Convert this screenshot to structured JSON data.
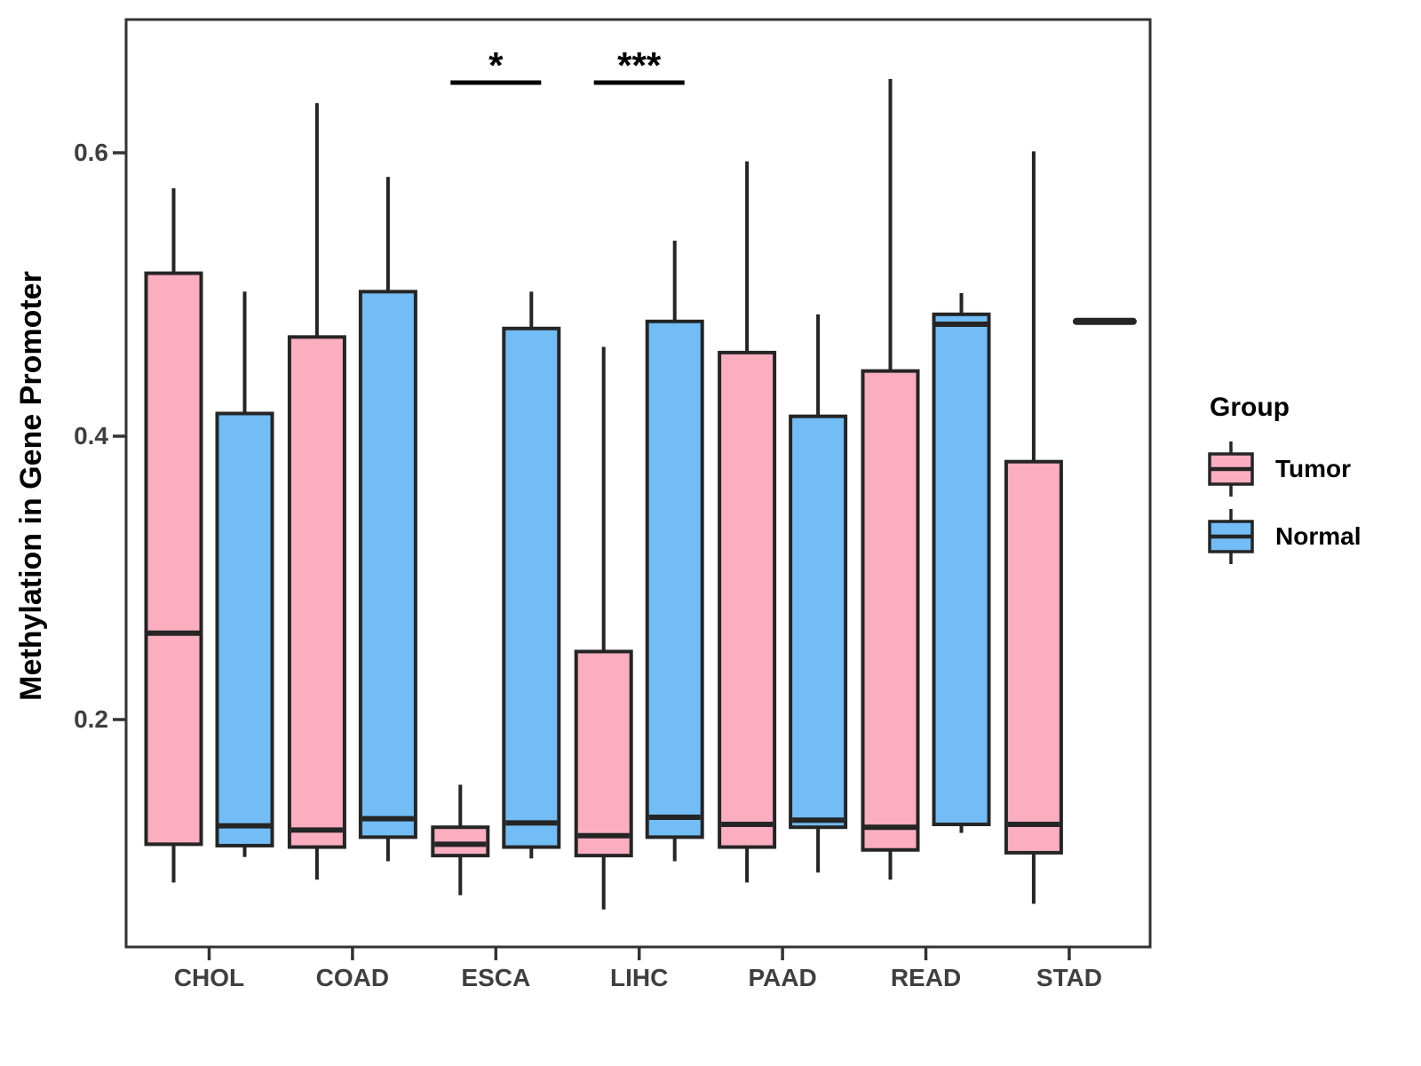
{
  "chart_data": {
    "type": "boxplot",
    "title": "",
    "xlabel": "",
    "ylabel": "Methylation in Gene Promoter",
    "categories": [
      "CHOL",
      "COAD",
      "ESCA",
      "LIHC",
      "PAAD",
      "READ",
      "STAD"
    ],
    "y_ticks": [
      {
        "label": "0.6",
        "value": 0.6
      },
      {
        "label": "0.4",
        "value": 0.4
      },
      {
        "label": "0.2",
        "value": 0.2
      }
    ],
    "ylim_visible": [
      0.04,
      0.695
    ],
    "grid": false,
    "legend": {
      "title": "Group",
      "position": "right",
      "entries": [
        {
          "label": "Tumor",
          "color": "#FBAEC0"
        },
        {
          "label": "Normal",
          "color": "#72BDF6"
        }
      ]
    },
    "series": [
      {
        "name": "Tumor",
        "color": "#FBAEC0",
        "boxes": [
          {
            "category": "CHOL",
            "low": 0.085,
            "q1": 0.112,
            "median": 0.261,
            "q3": 0.515,
            "high": 0.575
          },
          {
            "category": "COAD",
            "low": 0.087,
            "q1": 0.11,
            "median": 0.122,
            "q3": 0.47,
            "high": 0.635
          },
          {
            "category": "ESCA",
            "low": 0.076,
            "q1": 0.104,
            "median": 0.112,
            "q3": 0.124,
            "high": 0.154
          },
          {
            "category": "LIHC",
            "low": 0.066,
            "q1": 0.104,
            "median": 0.118,
            "q3": 0.248,
            "high": 0.463
          },
          {
            "category": "PAAD",
            "low": 0.085,
            "q1": 0.11,
            "median": 0.126,
            "q3": 0.459,
            "high": 0.594
          },
          {
            "category": "READ",
            "low": 0.087,
            "q1": 0.108,
            "median": 0.124,
            "q3": 0.446,
            "high": 0.652
          },
          {
            "category": "STAD",
            "low": 0.07,
            "q1": 0.106,
            "median": 0.126,
            "q3": 0.382,
            "high": 0.601
          }
        ]
      },
      {
        "name": "Normal",
        "color": "#72BDF6",
        "boxes": [
          {
            "category": "CHOL",
            "low": 0.103,
            "q1": 0.111,
            "median": 0.125,
            "q3": 0.416,
            "high": 0.502
          },
          {
            "category": "COAD",
            "low": 0.1,
            "q1": 0.117,
            "median": 0.13,
            "q3": 0.502,
            "high": 0.583
          },
          {
            "category": "ESCA",
            "low": 0.102,
            "q1": 0.11,
            "median": 0.127,
            "q3": 0.476,
            "high": 0.502
          },
          {
            "category": "LIHC",
            "low": 0.1,
            "q1": 0.117,
            "median": 0.131,
            "q3": 0.481,
            "high": 0.538
          },
          {
            "category": "PAAD",
            "low": 0.092,
            "q1": 0.124,
            "median": 0.129,
            "q3": 0.414,
            "high": 0.486
          },
          {
            "category": "READ",
            "low": 0.12,
            "q1": 0.126,
            "median": 0.479,
            "q3": 0.486,
            "high": 0.501
          },
          {
            "category": "STAD",
            "single": true,
            "median": 0.481
          }
        ]
      }
    ],
    "significance": [
      {
        "category": "ESCA",
        "label": "*"
      },
      {
        "category": "LIHC",
        "label": "***"
      }
    ],
    "colors": {
      "box_stroke": "#252525",
      "panel_border": "#333333",
      "axis_text": "#3F3F3F",
      "annotation": "#000000"
    }
  }
}
